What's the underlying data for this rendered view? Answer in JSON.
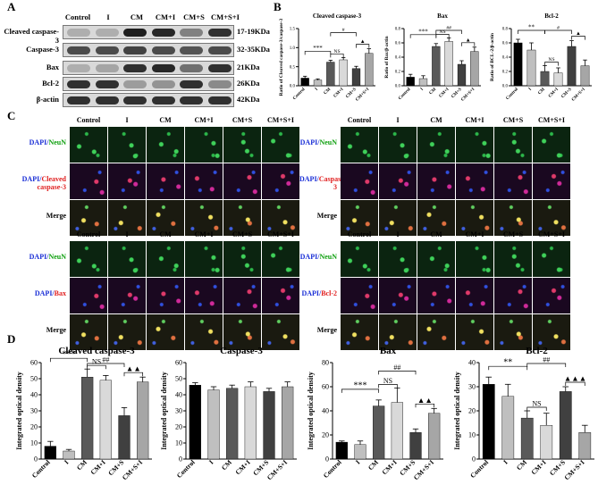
{
  "panels": {
    "a": "A",
    "b": "B",
    "c": "C",
    "d": "D"
  },
  "groups": [
    "Control",
    "I",
    "CM",
    "CM+I",
    "CM+S",
    "CM+S+I"
  ],
  "western_blot": {
    "rows": [
      {
        "label": "Cleaved caspase-3",
        "kda": "17-19KDa",
        "intensities": [
          0.15,
          0.15,
          0.95,
          0.9,
          0.4,
          0.85
        ]
      },
      {
        "label": "Caspase-3",
        "kda": "32-35KDa",
        "intensities": [
          0.7,
          0.7,
          0.75,
          0.7,
          0.65,
          0.7
        ]
      },
      {
        "label": "Bax",
        "kda": "21KDa",
        "intensities": [
          0.15,
          0.2,
          0.85,
          0.9,
          0.5,
          0.85
        ]
      },
      {
        "label": "Bcl-2",
        "kda": "26KDa",
        "intensities": [
          0.85,
          0.85,
          0.25,
          0.3,
          0.85,
          0.35
        ]
      },
      {
        "label": "β-actin",
        "kda": "42KDa",
        "intensities": [
          0.85,
          0.85,
          0.85,
          0.85,
          0.85,
          0.85
        ]
      }
    ]
  },
  "if_panels": {
    "top_left": {
      "rows": [
        [
          "DAPI/",
          "NeuN"
        ],
        [
          "DAPI/",
          "Cleaved caspase-3"
        ],
        [
          "Merge",
          ""
        ]
      ]
    },
    "top_right": {
      "rows": [
        [
          "DAPI/",
          "NeuN"
        ],
        [
          "DAPI/",
          "Caspase-3"
        ],
        [
          "Merge",
          ""
        ]
      ]
    },
    "bottom_left": {
      "rows": [
        [
          "DAPI/",
          "NeuN"
        ],
        [
          "DAPI/",
          "Bax"
        ],
        [
          "Merge",
          ""
        ]
      ]
    },
    "bottom_right": {
      "rows": [
        [
          "DAPI/",
          "NeuN"
        ],
        [
          "DAPI/",
          "Bcl-2"
        ],
        [
          "Merge",
          ""
        ]
      ]
    }
  },
  "chart_data": [
    {
      "type": "bar",
      "panel": "B",
      "title": "Cleaved caspase-3",
      "ylabel": "Ratio of Cleaved caspase-3/caspase-3",
      "categories": [
        "Control",
        "I",
        "CM",
        "CM+I",
        "CM+S",
        "CM+S+I"
      ],
      "values": [
        0.2,
        0.15,
        0.62,
        0.68,
        0.45,
        0.85
      ],
      "errors": [
        0.05,
        0.03,
        0.05,
        0.06,
        0.06,
        0.12
      ],
      "colors": [
        "#000000",
        "#bfbfbf",
        "#595959",
        "#d9d9d9",
        "#404040",
        "#a6a6a6"
      ],
      "ylim": [
        0,
        1.5
      ],
      "yticks": [
        "0.0",
        "0.5",
        "1.0",
        "1.5"
      ],
      "annotations": [
        "***",
        "NS",
        "#",
        "▲"
      ]
    },
    {
      "type": "bar",
      "panel": "B",
      "title": "Bax",
      "ylabel": "Ratio of Bax/β-actin",
      "categories": [
        "Control",
        "I",
        "CM",
        "CM+I",
        "CM+S",
        "CM+S+I"
      ],
      "values": [
        0.12,
        0.1,
        0.55,
        0.62,
        0.3,
        0.48
      ],
      "errors": [
        0.04,
        0.04,
        0.04,
        0.05,
        0.05,
        0.06
      ],
      "colors": [
        "#000000",
        "#bfbfbf",
        "#595959",
        "#d9d9d9",
        "#404040",
        "#a6a6a6"
      ],
      "ylim": [
        0,
        0.8
      ],
      "yticks": [
        "0.0",
        "0.2",
        "0.4",
        "0.6",
        "0.8"
      ],
      "annotations": [
        "***",
        "NS",
        "##",
        "▲"
      ]
    },
    {
      "type": "bar",
      "panel": "B",
      "title": "Bcl-2",
      "ylabel": "Ratio of BCL-2/β-actin",
      "categories": [
        "Control",
        "I",
        "CM",
        "CM+I",
        "CM+S",
        "CM+S+I"
      ],
      "values": [
        0.6,
        0.5,
        0.2,
        0.18,
        0.55,
        0.28
      ],
      "errors": [
        0.05,
        0.1,
        0.08,
        0.07,
        0.08,
        0.08
      ],
      "colors": [
        "#000000",
        "#bfbfbf",
        "#595959",
        "#d9d9d9",
        "#404040",
        "#a6a6a6"
      ],
      "ylim": [
        0,
        0.8
      ],
      "yticks": [
        "0.0",
        "0.2",
        "0.4",
        "0.6",
        "0.8"
      ],
      "annotations": [
        "**",
        "NS",
        "#",
        "▲"
      ]
    },
    {
      "type": "bar",
      "panel": "D",
      "title": "Cleaved caspase-3",
      "ylabel": "Integrated optical density",
      "categories": [
        "Control",
        "I",
        "CM",
        "CM+I",
        "CM+S",
        "CM+S+I"
      ],
      "values": [
        8,
        5,
        51,
        49,
        27,
        48
      ],
      "errors": [
        3,
        1,
        5,
        3,
        5,
        3
      ],
      "colors": [
        "#000000",
        "#bfbfbf",
        "#595959",
        "#d9d9d9",
        "#404040",
        "#a6a6a6"
      ],
      "ylim": [
        0,
        60
      ],
      "yticks": [
        "0",
        "10",
        "20",
        "30",
        "40",
        "50",
        "60"
      ],
      "annotations": [
        "***",
        "NS",
        "##",
        "▲▲"
      ]
    },
    {
      "type": "bar",
      "panel": "D",
      "title": "Caspase-3",
      "ylabel": "Integrated optical density",
      "categories": [
        "Control",
        "I",
        "CM",
        "CM+I",
        "CM+S",
        "CM+S+I"
      ],
      "values": [
        46,
        43,
        44,
        45,
        42,
        45
      ],
      "errors": [
        1.5,
        2,
        2,
        3,
        2,
        3
      ],
      "colors": [
        "#000000",
        "#bfbfbf",
        "#595959",
        "#d9d9d9",
        "#404040",
        "#a6a6a6"
      ],
      "ylim": [
        0,
        60
      ],
      "yticks": [
        "0",
        "10",
        "20",
        "30",
        "40",
        "50",
        "60"
      ],
      "annotations": []
    },
    {
      "type": "bar",
      "panel": "D",
      "title": "Bax",
      "ylabel": "Integrated optical density",
      "categories": [
        "Control",
        "I",
        "CM",
        "CM+I",
        "CM+S",
        "CM+S+I"
      ],
      "values": [
        14,
        12,
        44,
        47,
        22,
        38
      ],
      "errors": [
        1,
        3,
        5,
        12,
        3,
        4
      ],
      "colors": [
        "#000000",
        "#bfbfbf",
        "#595959",
        "#d9d9d9",
        "#404040",
        "#a6a6a6"
      ],
      "ylim": [
        0,
        80
      ],
      "yticks": [
        "0",
        "20",
        "40",
        "60",
        "80"
      ],
      "annotations": [
        "***",
        "NS",
        "##",
        "▲▲"
      ]
    },
    {
      "type": "bar",
      "panel": "D",
      "title": "Bcl-2",
      "ylabel": "Integrated optical density",
      "categories": [
        "Control",
        "I",
        "CM",
        "CM+I",
        "CM+S",
        "CM+S+I"
      ],
      "values": [
        31,
        26,
        17,
        14,
        28,
        11
      ],
      "errors": [
        3,
        5,
        3,
        5,
        2,
        3
      ],
      "colors": [
        "#000000",
        "#bfbfbf",
        "#595959",
        "#d9d9d9",
        "#404040",
        "#a6a6a6"
      ],
      "ylim": [
        0,
        40
      ],
      "yticks": [
        "0",
        "10",
        "20",
        "30",
        "40"
      ],
      "annotations": [
        "**",
        "NS",
        "##",
        "▲▲▲"
      ]
    }
  ]
}
